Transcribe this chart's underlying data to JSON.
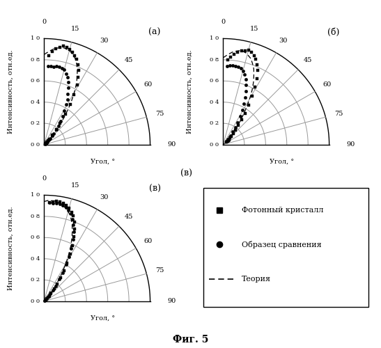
{
  "title": "Фиг. 5",
  "ylabel": "Интенсивность, отн.ед.",
  "xlabel": "Угол, °",
  "r_ticks": [
    0.0,
    0.2,
    0.4,
    0.6,
    0.8,
    1.0
  ],
  "r_tick_labels": [
    "0 0",
    "0 2",
    "0 4",
    "0 6",
    "0 8",
    "1 0"
  ],
  "angle_ticks_deg": [
    0,
    15,
    30,
    45,
    60,
    75,
    90
  ],
  "panel_a": {
    "label": "(а)",
    "squares_angles": [
      3,
      5,
      7,
      9,
      11,
      13,
      15,
      17,
      19,
      21,
      23,
      25,
      27,
      29,
      31,
      33,
      35,
      37,
      39,
      41,
      43,
      45,
      47,
      49,
      51
    ],
    "squares_r": [
      0.84,
      0.88,
      0.91,
      0.93,
      0.95,
      0.94,
      0.93,
      0.91,
      0.89,
      0.86,
      0.82,
      0.77,
      0.71,
      0.64,
      0.55,
      0.45,
      0.35,
      0.25,
      0.18,
      0.12,
      0.07,
      0.05,
      0.03,
      0.02,
      0.01
    ],
    "circles_angles": [
      3,
      5,
      7,
      9,
      11,
      13,
      15,
      17,
      19,
      21,
      23,
      25,
      27,
      29,
      31,
      33,
      35,
      37,
      39,
      41,
      43,
      45,
      47,
      49,
      51,
      53,
      55
    ],
    "circles_r": [
      0.74,
      0.74,
      0.74,
      0.75,
      0.75,
      0.74,
      0.73,
      0.7,
      0.67,
      0.63,
      0.58,
      0.53,
      0.48,
      0.43,
      0.37,
      0.32,
      0.27,
      0.22,
      0.18,
      0.14,
      0.11,
      0.08,
      0.06,
      0.04,
      0.03,
      0.02,
      0.01
    ],
    "theory_angles": [
      0,
      2,
      4,
      6,
      8,
      10,
      12,
      14,
      16,
      18,
      20,
      22,
      24,
      26,
      28,
      30,
      32,
      34,
      36,
      38,
      40,
      42,
      44,
      46,
      48,
      50,
      52,
      54,
      56,
      58,
      60,
      65,
      70,
      75,
      80,
      85,
      90
    ],
    "theory_r": [
      0.85,
      0.87,
      0.89,
      0.91,
      0.92,
      0.93,
      0.93,
      0.92,
      0.91,
      0.89,
      0.86,
      0.82,
      0.77,
      0.71,
      0.65,
      0.57,
      0.49,
      0.41,
      0.33,
      0.26,
      0.19,
      0.14,
      0.1,
      0.07,
      0.04,
      0.03,
      0.02,
      0.01,
      0.005,
      0.003,
      0.001,
      0.0005,
      0.0002,
      0.0001,
      5e-05,
      2e-05,
      0.0
    ]
  },
  "panel_b": {
    "label": "(б)",
    "squares_angles": [
      3,
      5,
      7,
      9,
      11,
      13,
      15,
      17,
      19,
      21,
      23,
      25,
      27,
      29,
      31,
      33,
      35,
      37,
      39,
      41,
      43,
      45,
      47,
      49,
      51,
      53,
      55
    ],
    "squares_r": [
      0.8,
      0.83,
      0.86,
      0.88,
      0.9,
      0.91,
      0.92,
      0.91,
      0.89,
      0.86,
      0.82,
      0.77,
      0.7,
      0.62,
      0.53,
      0.44,
      0.36,
      0.29,
      0.23,
      0.18,
      0.14,
      0.11,
      0.09,
      0.07,
      0.06,
      0.05,
      0.04
    ],
    "circles_angles": [
      3,
      5,
      7,
      9,
      11,
      13,
      15,
      17,
      19,
      21,
      23,
      25,
      27,
      29,
      31,
      33,
      35,
      37,
      39,
      41,
      43
    ],
    "circles_r": [
      0.74,
      0.75,
      0.75,
      0.75,
      0.75,
      0.74,
      0.72,
      0.69,
      0.65,
      0.6,
      0.55,
      0.49,
      0.43,
      0.37,
      0.31,
      0.25,
      0.2,
      0.15,
      0.11,
      0.07,
      0.04
    ],
    "theory_angles": [
      0,
      2,
      4,
      6,
      8,
      10,
      12,
      14,
      16,
      18,
      20,
      22,
      24,
      26,
      28,
      30,
      32,
      34,
      36,
      38,
      40,
      42,
      44,
      46,
      48,
      50,
      55,
      60,
      65,
      70,
      75,
      80,
      85,
      90
    ],
    "theory_r": [
      0.82,
      0.84,
      0.86,
      0.88,
      0.89,
      0.9,
      0.9,
      0.89,
      0.87,
      0.85,
      0.81,
      0.77,
      0.71,
      0.65,
      0.58,
      0.5,
      0.42,
      0.34,
      0.27,
      0.21,
      0.15,
      0.11,
      0.07,
      0.05,
      0.03,
      0.02,
      0.005,
      0.001,
      0.0003,
      0.0001,
      3e-05,
      1e-05,
      3e-06,
      0.0
    ]
  },
  "panel_c": {
    "label": "(в)",
    "squares_angles": [
      3,
      5,
      7,
      9,
      11,
      13,
      15,
      17,
      19,
      21,
      23,
      25,
      27,
      29,
      31,
      33,
      35,
      37,
      39,
      41,
      43,
      45,
      47,
      49
    ],
    "squares_r": [
      0.93,
      0.94,
      0.95,
      0.95,
      0.94,
      0.93,
      0.91,
      0.88,
      0.85,
      0.8,
      0.74,
      0.67,
      0.59,
      0.51,
      0.42,
      0.34,
      0.27,
      0.2,
      0.15,
      0.1,
      0.07,
      0.05,
      0.03,
      0.02
    ],
    "circles_angles": [
      3,
      5,
      7,
      9,
      11,
      13,
      15,
      17,
      19,
      21,
      23,
      25,
      27,
      29,
      31,
      33,
      35,
      37,
      39,
      41,
      43,
      45,
      47
    ],
    "circles_r": [
      0.93,
      0.93,
      0.93,
      0.93,
      0.92,
      0.91,
      0.89,
      0.86,
      0.82,
      0.77,
      0.71,
      0.64,
      0.56,
      0.48,
      0.4,
      0.32,
      0.25,
      0.18,
      0.13,
      0.09,
      0.06,
      0.03,
      0.01
    ],
    "theory_angles": [
      0,
      2,
      4,
      6,
      8,
      10,
      12,
      14,
      16,
      18,
      20,
      22,
      24,
      26,
      28,
      30,
      32,
      34,
      36,
      38,
      40,
      42,
      44,
      46,
      48,
      50,
      55,
      60,
      65,
      70,
      75,
      80,
      85,
      90
    ],
    "theory_r": [
      0.94,
      0.95,
      0.95,
      0.95,
      0.94,
      0.93,
      0.91,
      0.89,
      0.86,
      0.82,
      0.77,
      0.71,
      0.64,
      0.57,
      0.49,
      0.41,
      0.33,
      0.26,
      0.19,
      0.14,
      0.09,
      0.06,
      0.04,
      0.02,
      0.01,
      0.006,
      0.001,
      0.0002,
      5e-05,
      1e-05,
      3e-06,
      1e-06,
      3e-07,
      0.0
    ]
  },
  "legend": {
    "square_label": "Фотонный кристалл",
    "circle_label": "Образец сравнения",
    "theory_label": "Теория"
  }
}
